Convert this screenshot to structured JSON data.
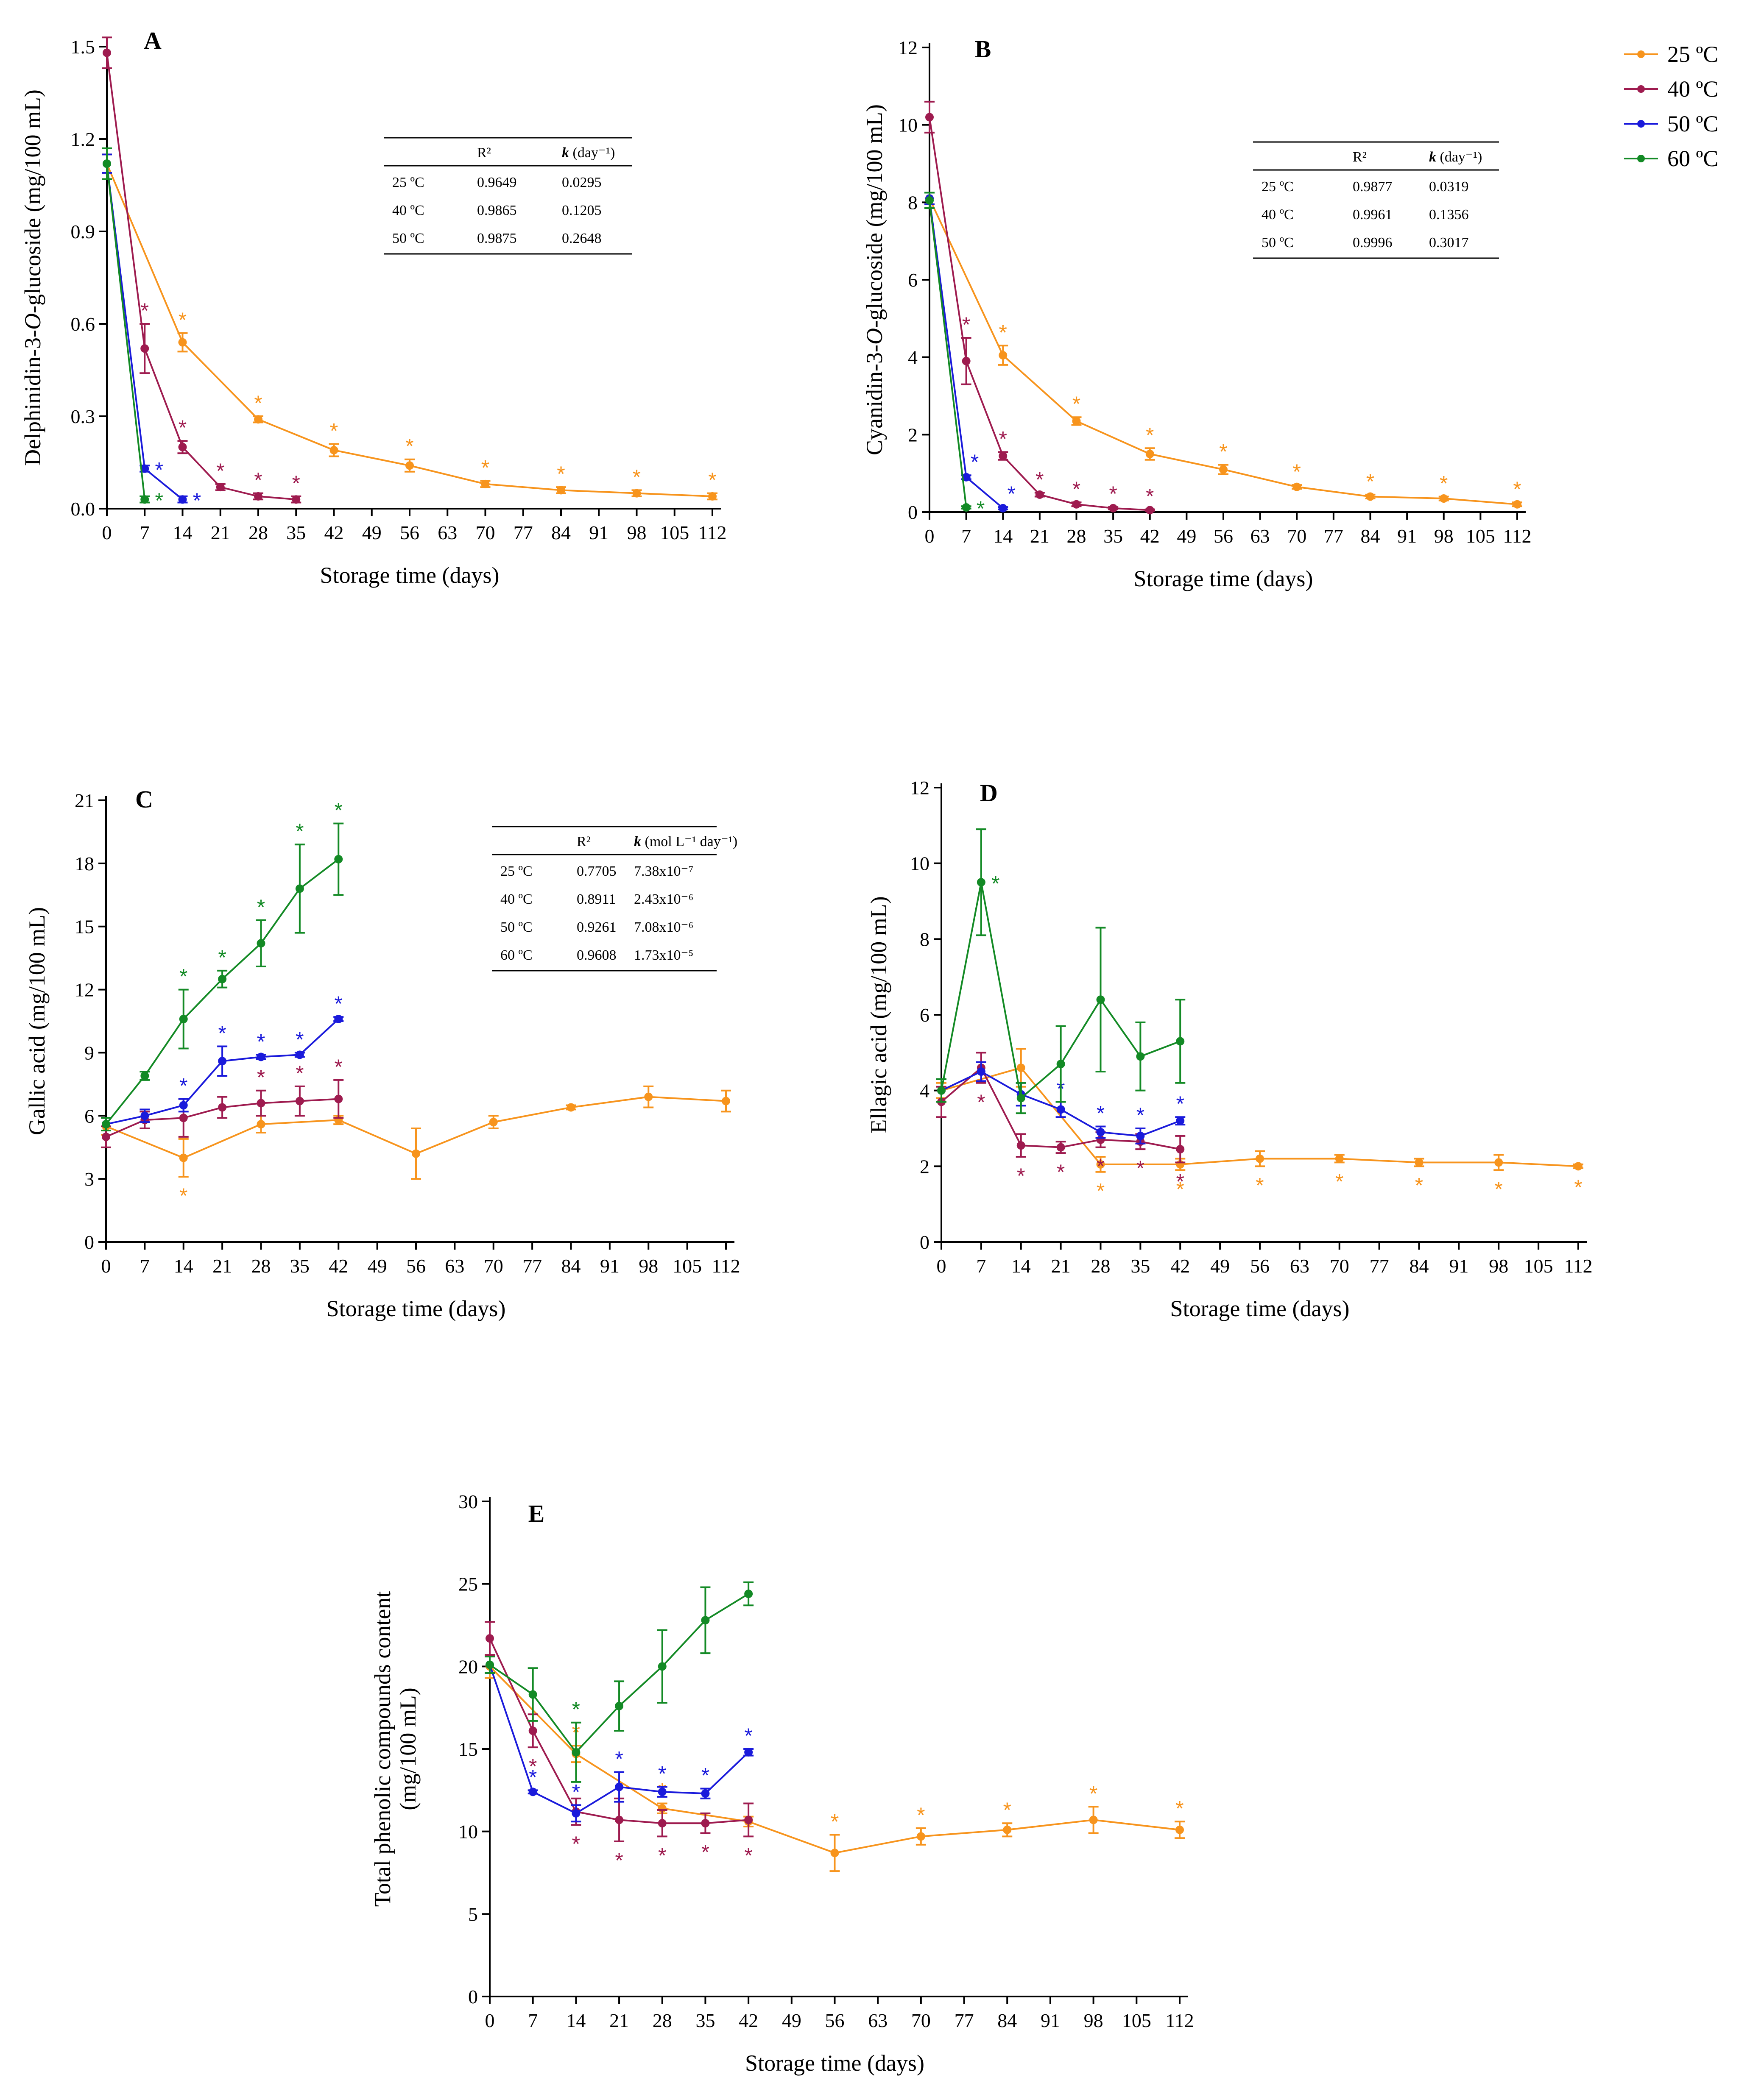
{
  "colors": {
    "25": "#f7941d",
    "40": "#9e1b4f",
    "50": "#1a1adb",
    "60": "#138a25"
  },
  "legend": [
    {
      "key": "25",
      "label": "25 ºC"
    },
    {
      "key": "40",
      "label": "40 ºC"
    },
    {
      "key": "50",
      "label": "50 ºC"
    },
    {
      "key": "60",
      "label": "60 ºC"
    }
  ],
  "x_ticks": [
    0,
    7,
    14,
    21,
    28,
    35,
    42,
    49,
    56,
    63,
    70,
    77,
    84,
    91,
    98,
    105,
    112
  ],
  "chart_data": [
    {
      "id": "A",
      "type": "line",
      "letter": "A",
      "ylabel": "Delphinidin-3-O-glucoside (mg/100 mL)",
      "ylabel_parts": [
        "Delphinidin-3-",
        "O",
        "-glucoside (mg/100 mL)"
      ],
      "xlabel": "Storage time (days)",
      "ylim": [
        0,
        1.5
      ],
      "yticks": [
        0.0,
        0.3,
        0.6,
        0.9,
        1.2,
        1.5
      ],
      "ytick_labels": [
        "0.0",
        "0.3",
        "0.6",
        "0.9",
        "1.2",
        "1.5"
      ],
      "xlim": [
        0,
        112
      ],
      "series": [
        {
          "name": "25 ºC",
          "key": "25",
          "x": [
            0,
            14,
            28,
            42,
            56,
            70,
            84,
            98,
            112
          ],
          "y": [
            1.12,
            0.54,
            0.29,
            0.19,
            0.14,
            0.08,
            0.06,
            0.05,
            0.04
          ],
          "err": [
            0.03,
            0.03,
            0.01,
            0.02,
            0.02,
            0.01,
            0.01,
            0.01,
            0.01
          ],
          "star": [
            false,
            true,
            true,
            true,
            true,
            true,
            true,
            true,
            true
          ],
          "star_pos": "above"
        },
        {
          "name": "40 ºC",
          "key": "40",
          "x": [
            0,
            7,
            14,
            21,
            28,
            35
          ],
          "y": [
            1.48,
            0.52,
            0.2,
            0.07,
            0.04,
            0.03
          ],
          "err": [
            0.05,
            0.08,
            0.02,
            0.01,
            0.01,
            0.01
          ],
          "star": [
            false,
            true,
            true,
            true,
            true,
            true
          ],
          "star_pos": "above"
        },
        {
          "name": "50 ºC",
          "key": "50",
          "x": [
            0,
            7,
            14
          ],
          "y": [
            1.12,
            0.13,
            0.03
          ],
          "err": [
            0.03,
            0.01,
            0.01
          ],
          "star": [
            false,
            true,
            true
          ],
          "star_pos": "right"
        },
        {
          "name": "60 ºC",
          "key": "60",
          "x": [
            0,
            7
          ],
          "y": [
            1.12,
            0.03
          ],
          "err": [
            0.05,
            0.01
          ],
          "star": [
            false,
            true
          ],
          "star_pos": "right"
        }
      ],
      "table": {
        "headers": [
          "",
          "R²",
          "k (day⁻¹)"
        ],
        "rows": [
          [
            "25 ºC",
            "0.9649",
            "0.0295"
          ],
          [
            "40 ºC",
            "0.9865",
            "0.1205"
          ],
          [
            "50 ºC",
            "0.9875",
            "0.2648"
          ]
        ]
      }
    },
    {
      "id": "B",
      "type": "line",
      "letter": "B",
      "ylabel": "Cyanidin-3-O-glucoside (mg/100 mL)",
      "ylabel_parts": [
        "Cyanidin-3-",
        "O",
        "-glucoside (mg/100 mL)"
      ],
      "xlabel": "Storage time (days)",
      "ylim": [
        0,
        12
      ],
      "yticks": [
        0,
        2,
        4,
        6,
        8,
        10,
        12
      ],
      "ytick_labels": [
        "0",
        "2",
        "4",
        "6",
        "8",
        "10",
        "12"
      ],
      "xlim": [
        0,
        112
      ],
      "series": [
        {
          "name": "25 ºC",
          "key": "25",
          "x": [
            0,
            14,
            28,
            42,
            56,
            70,
            84,
            98,
            112
          ],
          "y": [
            8.1,
            4.05,
            2.35,
            1.5,
            1.1,
            0.65,
            0.4,
            0.35,
            0.2
          ],
          "err": [
            0.15,
            0.25,
            0.1,
            0.15,
            0.12,
            0.05,
            0.05,
            0.05,
            0.05
          ],
          "star": [
            false,
            true,
            true,
            true,
            true,
            true,
            true,
            true,
            true
          ],
          "star_pos": "above"
        },
        {
          "name": "40 ºC",
          "key": "40",
          "x": [
            0,
            7,
            14,
            21,
            28,
            35,
            42
          ],
          "y": [
            10.2,
            3.9,
            1.45,
            0.45,
            0.2,
            0.1,
            0.05
          ],
          "err": [
            0.4,
            0.6,
            0.1,
            0.05,
            0.05,
            0.03,
            0.02
          ],
          "star": [
            false,
            true,
            true,
            true,
            true,
            true,
            true
          ],
          "star_pos": "above"
        },
        {
          "name": "50 ºC",
          "key": "50",
          "x": [
            0,
            7,
            14
          ],
          "y": [
            8.1,
            0.9,
            0.1
          ],
          "err": [
            0.15,
            0.05,
            0.03
          ],
          "star": [
            false,
            true,
            true
          ],
          "star_pos": "above-right"
        },
        {
          "name": "60 ºC",
          "key": "60",
          "x": [
            0,
            7
          ],
          "y": [
            8.05,
            0.12
          ],
          "err": [
            0.2,
            0.03
          ],
          "star": [
            false,
            true
          ],
          "star_pos": "right"
        }
      ],
      "table": {
        "headers": [
          "",
          "R²",
          "k (day⁻¹)"
        ],
        "rows": [
          [
            "25 ºC",
            "0.9877",
            "0.0319"
          ],
          [
            "40 ºC",
            "0.9961",
            "0.1356"
          ],
          [
            "50 ºC",
            "0.9996",
            "0.3017"
          ]
        ]
      }
    },
    {
      "id": "C",
      "type": "line",
      "letter": "C",
      "ylabel": "Gallic acid (mg/100 mL)",
      "ylabel_parts": [
        "Gallic acid (mg/100 mL)"
      ],
      "xlabel": "Storage time (days)",
      "ylim": [
        0,
        21
      ],
      "yticks": [
        0,
        3,
        6,
        9,
        12,
        15,
        18,
        21
      ],
      "ytick_labels": [
        "0",
        "3",
        "6",
        "9",
        "12",
        "15",
        "18",
        "21"
      ],
      "xlim": [
        0,
        112
      ],
      "series": [
        {
          "name": "25 ºC",
          "key": "25",
          "x": [
            0,
            14,
            28,
            42,
            56,
            70,
            84,
            98,
            112
          ],
          "y": [
            5.5,
            4.0,
            5.6,
            5.8,
            4.2,
            5.7,
            6.4,
            6.9,
            6.7
          ],
          "err": [
            0.4,
            0.9,
            0.4,
            0.2,
            1.2,
            0.3,
            0.1,
            0.5,
            0.5
          ],
          "star": [
            false,
            true,
            false,
            false,
            false,
            false,
            false,
            false,
            false
          ],
          "star_pos": "below"
        },
        {
          "name": "40 ºC",
          "key": "40",
          "x": [
            0,
            7,
            14,
            21,
            28,
            35,
            42
          ],
          "y": [
            5.0,
            5.8,
            5.9,
            6.4,
            6.6,
            6.7,
            6.8
          ],
          "err": [
            0.5,
            0.4,
            0.9,
            0.5,
            0.6,
            0.7,
            0.9
          ],
          "star": [
            false,
            false,
            false,
            false,
            true,
            true,
            true
          ],
          "star_pos": "above"
        },
        {
          "name": "50 ºC",
          "key": "50",
          "x": [
            0,
            7,
            14,
            21,
            28,
            35,
            42
          ],
          "y": [
            5.6,
            6.0,
            6.5,
            8.6,
            8.8,
            8.9,
            10.6
          ],
          "err": [
            0.3,
            0.3,
            0.3,
            0.7,
            0.1,
            0.1,
            0.1
          ],
          "star": [
            false,
            false,
            true,
            true,
            true,
            true,
            true
          ],
          "star_pos": "above"
        },
        {
          "name": "60 ºC",
          "key": "60",
          "x": [
            0,
            7,
            14,
            21,
            28,
            35,
            42
          ],
          "y": [
            5.6,
            7.9,
            10.6,
            12.5,
            14.2,
            16.8,
            18.2
          ],
          "err": [
            0.3,
            0.2,
            1.4,
            0.4,
            1.1,
            2.1,
            1.7
          ],
          "star": [
            false,
            false,
            true,
            true,
            true,
            true,
            true
          ],
          "star_pos": "above"
        }
      ],
      "table": {
        "headers": [
          "",
          "R²",
          "k (mol L⁻¹ day⁻¹)"
        ],
        "rows": [
          [
            "25 ºC",
            "0.7705",
            "7.38x10⁻⁷"
          ],
          [
            "40 ºC",
            "0.8911",
            "2.43x10⁻⁶"
          ],
          [
            "50 ºC",
            "0.9261",
            "7.08x10⁻⁶"
          ],
          [
            "60 ºC",
            "0.9608",
            "1.73x10⁻⁵"
          ]
        ]
      }
    },
    {
      "id": "D",
      "type": "line",
      "letter": "D",
      "ylabel": "Ellagic acid (mg/100 mL)",
      "ylabel_parts": [
        "Ellagic acid (mg/100 mL)"
      ],
      "xlabel": "Storage time (days)",
      "ylim": [
        0,
        12
      ],
      "yticks": [
        0,
        2,
        4,
        6,
        8,
        10,
        12
      ],
      "ytick_labels": [
        "0",
        "2",
        "4",
        "6",
        "8",
        "10",
        "12"
      ],
      "xlim": [
        0,
        112
      ],
      "series": [
        {
          "name": "25 ºC",
          "key": "25",
          "x": [
            0,
            14,
            28,
            42,
            56,
            70,
            84,
            98,
            112
          ],
          "y": [
            4.0,
            4.6,
            2.05,
            2.05,
            2.2,
            2.2,
            2.1,
            2.1,
            2.0
          ],
          "err": [
            0.2,
            0.5,
            0.2,
            0.15,
            0.2,
            0.1,
            0.1,
            0.2,
            0.05
          ],
          "star": [
            false,
            false,
            true,
            true,
            true,
            true,
            true,
            true,
            true
          ],
          "star_pos": "below"
        },
        {
          "name": "40 ºC",
          "key": "40",
          "x": [
            0,
            7,
            14,
            21,
            28,
            35,
            42
          ],
          "y": [
            3.7,
            4.6,
            2.55,
            2.5,
            2.7,
            2.65,
            2.45
          ],
          "err": [
            0.4,
            0.4,
            0.3,
            0.15,
            0.2,
            0.2,
            0.35
          ],
          "star": [
            false,
            true,
            true,
            true,
            true,
            true,
            true
          ],
          "star_pos": "below"
        },
        {
          "name": "50 ºC",
          "key": "50",
          "x": [
            0,
            7,
            14,
            21,
            28,
            35,
            42
          ],
          "y": [
            4.0,
            4.5,
            3.9,
            3.5,
            2.9,
            2.8,
            3.2
          ],
          "err": [
            0.3,
            0.25,
            0.3,
            0.2,
            0.15,
            0.2,
            0.1
          ],
          "star": [
            false,
            false,
            false,
            true,
            true,
            true,
            true
          ],
          "star_pos": "above"
        },
        {
          "name": "60 ºC",
          "key": "60",
          "x": [
            0,
            7,
            14,
            21,
            28,
            35,
            42
          ],
          "y": [
            4.0,
            9.5,
            3.8,
            4.7,
            6.4,
            4.9,
            5.3
          ],
          "err": [
            0.3,
            1.4,
            0.4,
            1.0,
            1.9,
            0.9,
            1.1
          ],
          "star": [
            false,
            true,
            false,
            false,
            false,
            false,
            false
          ],
          "star_pos": "right"
        }
      ]
    },
    {
      "id": "E",
      "type": "line",
      "letter": "E",
      "ylabel": "Total phenolic compounds content (mg/100 mL)",
      "ylabel_lines": [
        "Total phenolic compounds content",
        "(mg/100 mL)"
      ],
      "xlabel": "Storage time (days)",
      "ylim": [
        0,
        30
      ],
      "yticks": [
        0,
        5,
        10,
        15,
        20,
        25,
        30
      ],
      "ytick_labels": [
        "0",
        "5",
        "10",
        "15",
        "20",
        "25",
        "30"
      ],
      "xlim": [
        0,
        112
      ],
      "series": [
        {
          "name": "25 ºC",
          "key": "25",
          "x": [
            0,
            14,
            28,
            42,
            56,
            70,
            84,
            98,
            112
          ],
          "y": [
            20.0,
            14.7,
            11.4,
            10.6,
            8.7,
            9.7,
            10.1,
            10.7,
            10.1
          ],
          "err": [
            0.7,
            0.5,
            0.3,
            0.3,
            1.1,
            0.5,
            0.4,
            0.8,
            0.5
          ],
          "star": [
            false,
            true,
            true,
            false,
            true,
            true,
            true,
            true,
            true
          ],
          "star_pos": "above"
        },
        {
          "name": "40 ºC",
          "key": "40",
          "x": [
            0,
            7,
            14,
            21,
            28,
            35,
            42
          ],
          "y": [
            21.7,
            16.1,
            11.2,
            10.7,
            10.5,
            10.5,
            10.7
          ],
          "err": [
            1.0,
            1.0,
            0.8,
            1.3,
            0.8,
            0.6,
            1.0
          ],
          "star": [
            false,
            true,
            true,
            true,
            true,
            true,
            true
          ],
          "star_pos": "below"
        },
        {
          "name": "50 ºC",
          "key": "50",
          "x": [
            0,
            7,
            14,
            21,
            28,
            35,
            42
          ],
          "y": [
            20.1,
            12.4,
            11.1,
            12.7,
            12.4,
            12.3,
            14.8
          ],
          "err": [
            0.5,
            0.1,
            0.5,
            0.9,
            0.3,
            0.3,
            0.2
          ],
          "star": [
            false,
            true,
            true,
            true,
            true,
            true,
            true
          ],
          "star_pos": "above"
        },
        {
          "name": "60 ºC",
          "key": "60",
          "x": [
            0,
            7,
            14,
            21,
            28,
            35,
            42
          ],
          "y": [
            20.1,
            18.3,
            14.8,
            17.6,
            20.0,
            22.8,
            24.4
          ],
          "err": [
            0.5,
            1.6,
            1.8,
            1.5,
            2.2,
            2.0,
            0.7
          ],
          "star": [
            false,
            false,
            true,
            false,
            false,
            false,
            false
          ],
          "star_pos": "above"
        }
      ]
    }
  ]
}
